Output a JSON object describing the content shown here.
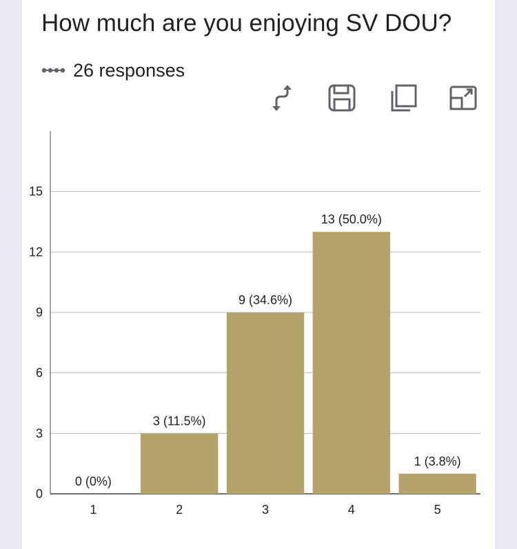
{
  "header": {
    "title": "How much are you enjoying SV DOU?",
    "responses": "26 responses"
  },
  "toolbar": {
    "icons": [
      "swap-axes-icon",
      "save-icon",
      "copy-icon",
      "expand-icon"
    ]
  },
  "colors": {
    "bar": "#b5a36b",
    "grid": "#bdbdbd",
    "axis": "#444444",
    "background": "#ece8f6"
  },
  "chart_data": {
    "type": "bar",
    "categories": [
      "1",
      "2",
      "3",
      "4",
      "5"
    ],
    "values": [
      0,
      3,
      9,
      13,
      1
    ],
    "data_labels": [
      "0 (0%)",
      "3 (11.5%)",
      "9 (34.6%)",
      "13 (50.0%)",
      "1 (3.8%)"
    ],
    "y_ticks": [
      0,
      3,
      6,
      9,
      12,
      15
    ],
    "ylim": [
      0,
      18
    ],
    "grid": true,
    "legend": "none"
  }
}
